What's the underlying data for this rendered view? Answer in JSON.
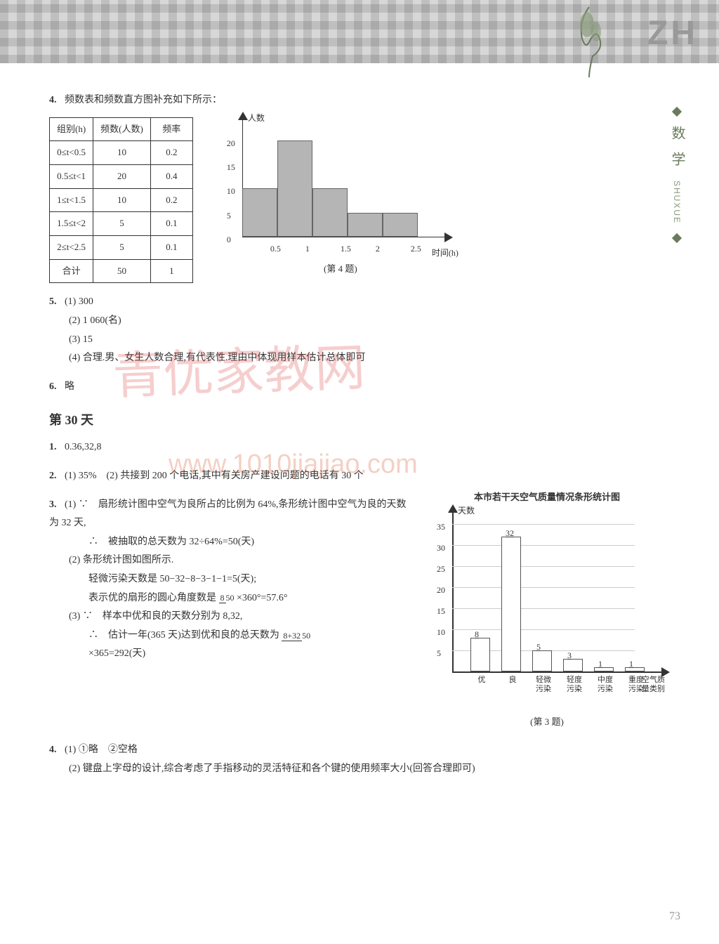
{
  "header": {
    "zh": "ZH",
    "subject": "数 学",
    "pinyin": "SHUXUE"
  },
  "q4": {
    "num": "4.",
    "intro": "频数表和频数直方图补充如下所示：",
    "table": {
      "headers": [
        "组别(h)",
        "频数(人数)",
        "频率"
      ],
      "rows": [
        [
          "0≤t<0.5",
          "10",
          "0.2"
        ],
        [
          "0.5≤t<1",
          "20",
          "0.4"
        ],
        [
          "1≤t<1.5",
          "10",
          "0.2"
        ],
        [
          "1.5≤t<2",
          "5",
          "0.1"
        ],
        [
          "2≤t<2.5",
          "5",
          "0.1"
        ],
        [
          "合计",
          "50",
          "1"
        ]
      ]
    },
    "chart": {
      "type": "histogram",
      "ylabel": "人数",
      "xlabel": "时间(h)",
      "x_ticks": [
        "0.5",
        "1",
        "1.5",
        "2",
        "2.5"
      ],
      "y_ticks": [
        "0",
        "5",
        "10",
        "15",
        "20"
      ],
      "values": [
        10,
        20,
        10,
        5,
        5
      ],
      "ylim": [
        0,
        22
      ],
      "bar_color": "#b5b5b5",
      "axis_color": "#333333",
      "caption": "(第 4 题)"
    }
  },
  "q5": {
    "num": "5.",
    "items": {
      "a": "(1) 300",
      "b": "(2) 1 060(名)",
      "c": "(3) 15",
      "d": "(4) 合理.男、女生人数合理,有代表性.理由中体现用样本估计总体即可"
    }
  },
  "q6": {
    "num": "6.",
    "text": "略"
  },
  "day30": "第 30 天",
  "d1": {
    "num": "1.",
    "text": "0.36,32,8"
  },
  "d2": {
    "num": "2.",
    "text": "(1) 35%　(2) 共接到 200 个电话,其中有关房产建设问题的电话有 30 个"
  },
  "d3": {
    "num": "3.",
    "p1a": "(1) ∵　扇形统计图中空气为良所占的比例为 64%,条形统计图中空气为良的天数为 32 天,",
    "p1b": "∴　被抽取的总天数为 32÷64%=50(天)",
    "p2a": "(2) 条形统计图如图所示.",
    "p2b": "轻微污染天数是 50−32−8−3−1−1=5(天);",
    "p2c_pre": "表示优的扇形的圆心角度数是 ",
    "p2c_frac_t": "8",
    "p2c_frac_b": "50",
    "p2c_post": "×360°=57.6°",
    "p3a": "(3) ∵　样本中优和良的天数分别为 8,32,",
    "p3b_pre": "∴　估计一年(365 天)达到优和良的总天数为 ",
    "p3b_frac_t": "8+32",
    "p3b_frac_b": "50",
    "p3c": "×365=292(天)",
    "chart": {
      "title": "本市若干天空气质量情况条形统计图",
      "ylabel": "天数",
      "xlabel_cats": [
        "优",
        "良",
        "轻微\n污染",
        "轻度\n污染",
        "中度\n污染",
        "重度\n污染"
      ],
      "xlabel_end": "空气质\n量类别",
      "values": [
        8,
        32,
        5,
        3,
        1,
        1
      ],
      "value_labels": [
        "8",
        "32",
        "5",
        "3",
        "1",
        "1"
      ],
      "y_ticks": [
        "5",
        "10",
        "15",
        "20",
        "25",
        "30",
        "35"
      ],
      "ylim": [
        0,
        35
      ],
      "bar_border": "#555555",
      "caption": "(第 3 题)"
    }
  },
  "d4": {
    "num": "4.",
    "p1": "(1) ①略　②空格",
    "p2": "(2) 键盘上字母的设计,综合考虑了手指移动的灵活特征和各个键的使用频率大小(回答合理即可)"
  },
  "pagenum": "73",
  "watermark": {
    "main": "青优家教网",
    "url": "www.1010jiajiao.com"
  }
}
